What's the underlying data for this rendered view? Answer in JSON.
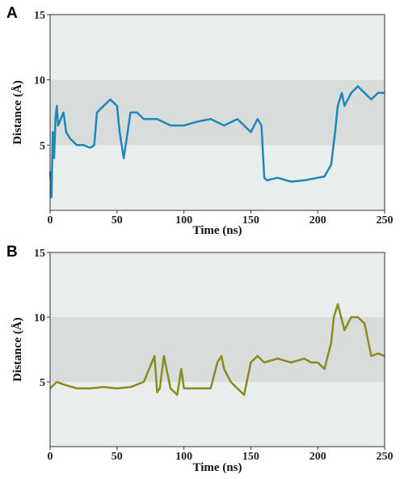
{
  "chart_data": [
    {
      "panel": "A",
      "type": "line",
      "xlabel": "Time (ns)",
      "ylabel": "Distance (Å)",
      "xlim": [
        0,
        250
      ],
      "ylim": [
        0,
        15
      ],
      "xticks": [
        0,
        50,
        100,
        150,
        200,
        250
      ],
      "yticks": [
        5,
        10,
        15
      ],
      "band": [
        5,
        10
      ],
      "background_color": "#e8eeed",
      "band_color": "#d8dddc",
      "series_color": "#1f87b8",
      "series": [
        {
          "x": [
            0,
            1,
            2,
            3,
            4,
            5,
            6,
            8,
            10,
            12,
            15,
            20,
            25,
            30,
            33,
            35,
            40,
            45,
            50,
            52,
            55,
            58,
            60,
            65,
            70,
            80,
            90,
            100,
            110,
            120,
            130,
            140,
            150,
            155,
            158,
            160,
            162,
            170,
            180,
            190,
            200,
            205,
            210,
            213,
            215,
            218,
            220,
            225,
            230,
            235,
            240,
            245,
            250
          ],
          "y": [
            3,
            1,
            6,
            4,
            7,
            8,
            6.5,
            7,
            7.5,
            6,
            5.5,
            5,
            5,
            4.8,
            5,
            7.5,
            8,
            8.5,
            8,
            6,
            4,
            6,
            7.5,
            7.5,
            7,
            7,
            6.5,
            6.5,
            6.8,
            7,
            6.5,
            7,
            6,
            7,
            6.5,
            2.5,
            2.3,
            2.5,
            2.2,
            2.3,
            2.5,
            2.6,
            3.5,
            6,
            8,
            9,
            8,
            9,
            9.5,
            9,
            8.5,
            9,
            9
          ]
        }
      ]
    },
    {
      "panel": "B",
      "type": "line",
      "xlabel": "Time (ns)",
      "ylabel": "Distance (Å)",
      "xlim": [
        0,
        250
      ],
      "ylim": [
        0,
        15
      ],
      "xticks": [
        0,
        50,
        100,
        150,
        200,
        250
      ],
      "yticks": [
        5,
        10,
        15
      ],
      "band": [
        5,
        10
      ],
      "background_color": "#e8eeed",
      "band_color": "#d8dddc",
      "series_color": "#8a8a1e",
      "series": [
        {
          "x": [
            0,
            5,
            10,
            20,
            30,
            40,
            50,
            60,
            70,
            78,
            80,
            82,
            85,
            90,
            95,
            98,
            100,
            110,
            120,
            125,
            128,
            130,
            135,
            140,
            145,
            150,
            155,
            160,
            170,
            180,
            190,
            195,
            200,
            205,
            210,
            212,
            215,
            220,
            225,
            230,
            235,
            240,
            245,
            250
          ],
          "y": [
            4.5,
            5,
            4.8,
            4.5,
            4.5,
            4.6,
            4.5,
            4.6,
            5,
            7,
            4.2,
            4.5,
            7,
            4.5,
            4,
            6,
            4.5,
            4.5,
            4.5,
            6.5,
            7,
            6,
            5,
            4.5,
            4,
            6.5,
            7,
            6.5,
            6.8,
            6.5,
            6.8,
            6.5,
            6.5,
            6,
            8,
            10,
            11,
            9,
            10,
            10,
            9.5,
            7,
            7.2,
            7
          ]
        }
      ]
    }
  ]
}
